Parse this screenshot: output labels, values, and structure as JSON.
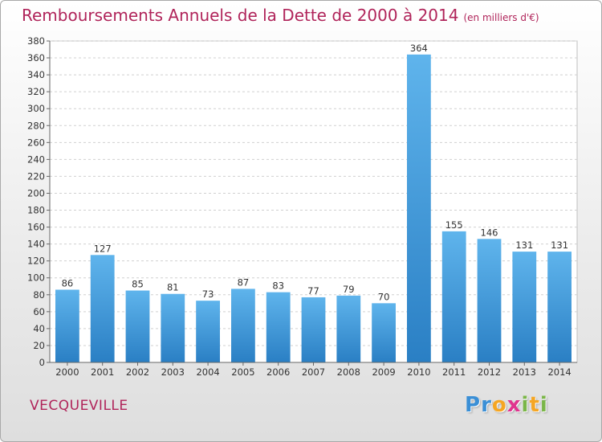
{
  "header": {
    "title": "Remboursements Annuels de la Dette de 2000 à 2014",
    "unit": "(en milliers d'€)"
  },
  "footer": {
    "commune": "VECQUEVILLE",
    "logo_letters": [
      {
        "ch": "P",
        "color": "#3a8fd6"
      },
      {
        "ch": "r",
        "color": "#3a8fd6"
      },
      {
        "ch": "o",
        "color": "#f5a623"
      },
      {
        "ch": "x",
        "color": "#e0338e"
      },
      {
        "ch": "i",
        "color": "#7ab648"
      },
      {
        "ch": "t",
        "color": "#f5a623"
      },
      {
        "ch": "i",
        "color": "#7ab648"
      }
    ]
  },
  "chart_data": {
    "type": "bar",
    "categories": [
      "2000",
      "2001",
      "2002",
      "2003",
      "2004",
      "2005",
      "2006",
      "2007",
      "2008",
      "2009",
      "2010",
      "2011",
      "2012",
      "2013",
      "2014"
    ],
    "values": [
      86,
      127,
      85,
      81,
      73,
      87,
      83,
      77,
      79,
      70,
      364,
      155,
      146,
      131,
      131
    ],
    "title": "Remboursements Annuels de la Dette de 2000 à 2014",
    "xlabel": "",
    "ylabel": "",
    "ylim": [
      0,
      380
    ],
    "ytick_step": 20,
    "grid": true,
    "bar_color_light": "#5fb4ec",
    "bar_color_dark": "#2a7fc4",
    "title_color": "#b0245a"
  }
}
